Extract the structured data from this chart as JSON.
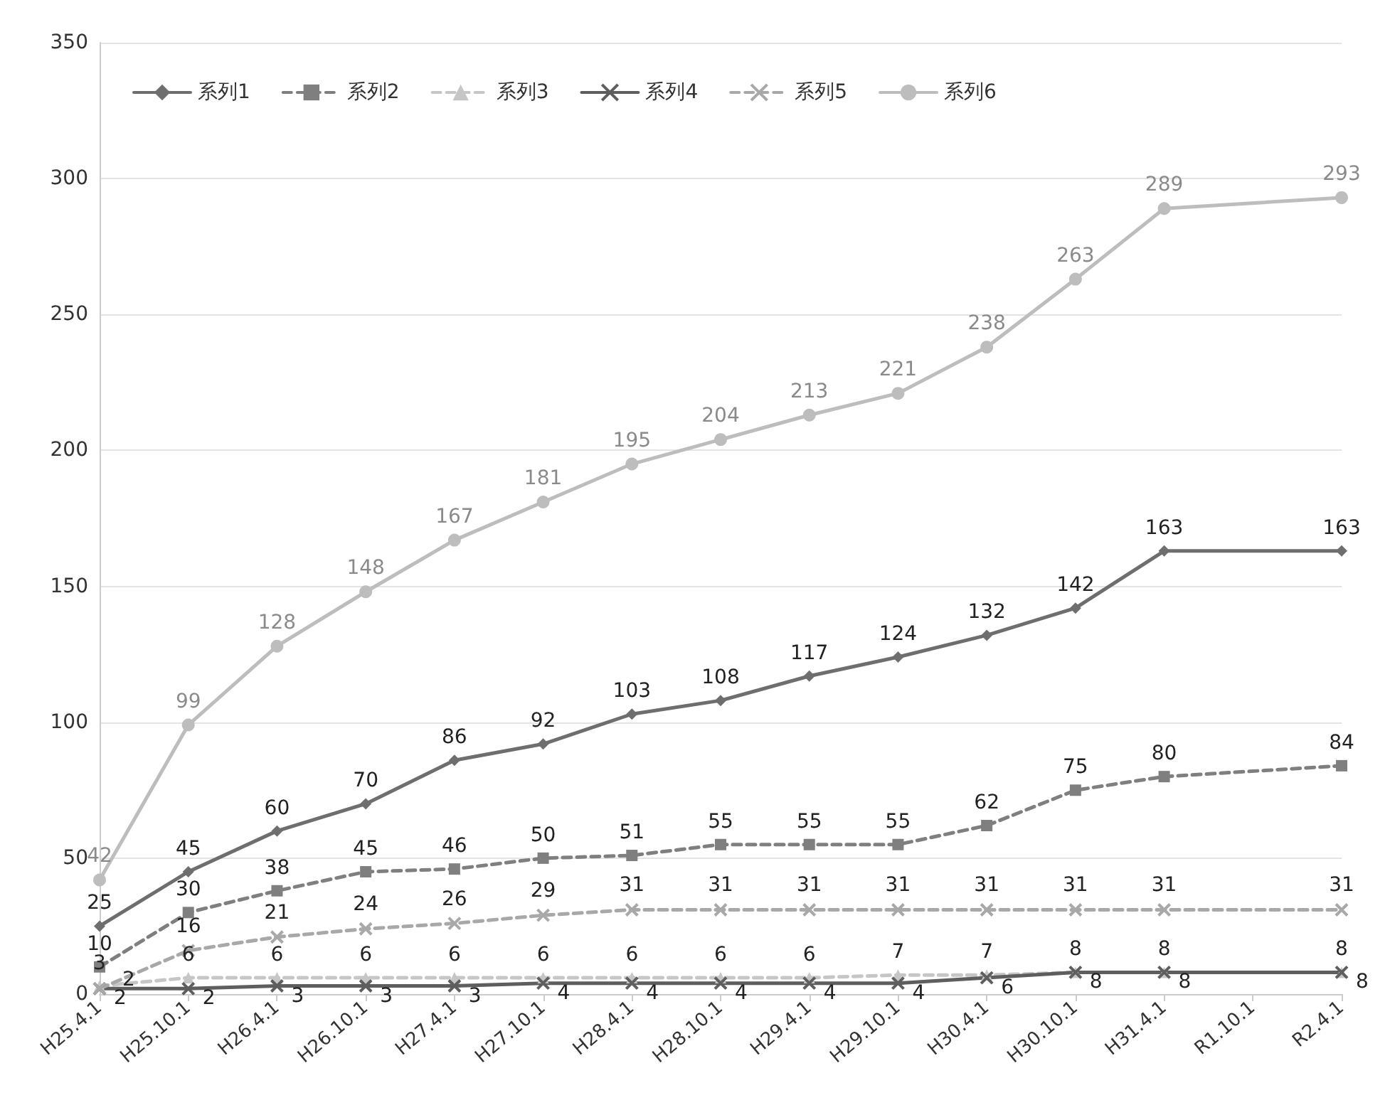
{
  "chart_data": {
    "type": "line",
    "categories": [
      "H25.4.1",
      "H25.10.1",
      "H26.4.1",
      "H26.10.1",
      "H27.4.1",
      "H27.10.1",
      "H28.4.1",
      "H28.10.1",
      "H29.4.1",
      "H29.10.1",
      "H30.4.1",
      "H30.10.1",
      "H31.4.1",
      "R1.10.1",
      "R2.4.1"
    ],
    "series": [
      {
        "name": "系列1",
        "color": "#6e6e6e",
        "marker": "diamond",
        "line_style": "solid",
        "values": [
          25,
          45,
          60,
          70,
          86,
          92,
          103,
          108,
          117,
          124,
          132,
          142,
          163,
          null,
          163
        ]
      },
      {
        "name": "系列2",
        "color": "#7f7f7f",
        "marker": "square",
        "line_style": "dashed",
        "values": [
          10,
          30,
          38,
          45,
          46,
          50,
          51,
          55,
          55,
          55,
          62,
          75,
          80,
          null,
          84
        ]
      },
      {
        "name": "系列3",
        "color": "#c6c6c6",
        "marker": "triangle",
        "line_style": "dashed",
        "values": [
          3,
          6,
          6,
          6,
          6,
          6,
          6,
          6,
          6,
          7,
          7,
          8,
          8,
          null,
          8
        ]
      },
      {
        "name": "系列4",
        "color": "#5e5e5e",
        "marker": "cross",
        "line_style": "solid",
        "values": [
          2,
          2,
          3,
          3,
          3,
          4,
          4,
          4,
          4,
          4,
          6,
          8,
          8,
          null,
          8
        ]
      },
      {
        "name": "系列5",
        "color": "#a8a8a8",
        "marker": "cross",
        "line_style": "dashed",
        "values": [
          2,
          16,
          21,
          24,
          26,
          29,
          31,
          31,
          31,
          31,
          31,
          31,
          31,
          null,
          31
        ]
      },
      {
        "name": "系列6",
        "color": "#bdbdbd",
        "marker": "circle",
        "line_style": "solid",
        "values": [
          42,
          99,
          128,
          148,
          167,
          181,
          195,
          204,
          213,
          221,
          238,
          263,
          289,
          null,
          293
        ]
      }
    ],
    "ylim": [
      0,
      350
    ],
    "yticks": [
      0,
      50,
      100,
      150,
      200,
      250,
      300,
      350
    ],
    "grid": "y",
    "legend": "top",
    "data_labels": true
  }
}
